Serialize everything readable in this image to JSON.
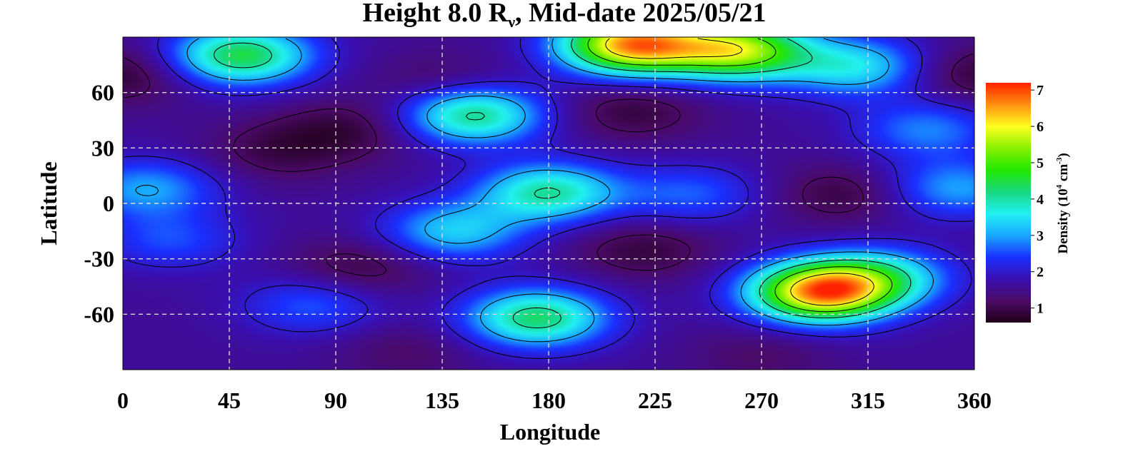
{
  "chart_data": {
    "type": "heatmap",
    "title": {
      "prefix": "Height 8.0 R",
      "subscript": "ν",
      "suffix": ", Mid-date 2025/05/21"
    },
    "xlabel": "Longitude",
    "ylabel": "Latitude",
    "xlim": [
      0,
      360
    ],
    "ylim": [
      -90,
      90
    ],
    "xticks": [
      0,
      45,
      90,
      135,
      180,
      225,
      270,
      315,
      360
    ],
    "yticks": [
      60,
      30,
      0,
      -30,
      -60
    ],
    "grid": true,
    "colorbar": {
      "label": {
        "prefix": "Density (10",
        "sup1": "4",
        "middle": " cm",
        "sup2": "-3",
        "suffix": ")"
      },
      "range": [
        0.6,
        7.2
      ],
      "ticks": [
        1,
        2,
        3,
        4,
        5,
        6,
        7
      ],
      "colors": [
        "#200018",
        "#4a0a66",
        "#3a0fb0",
        "#1a30ff",
        "#18a8ff",
        "#22f0f0",
        "#18d880",
        "#22e800",
        "#88f000",
        "#ffff20",
        "#ff9010",
        "#ff2200"
      ]
    },
    "features": [
      {
        "lon": 0,
        "lat": 70,
        "value": 0.8
      },
      {
        "lon": 360,
        "lat": 70,
        "value": 0.8
      },
      {
        "lon": 95,
        "lat": 40,
        "value": 0.9
      },
      {
        "lon": 65,
        "lat": 28,
        "value": 1.0
      },
      {
        "lon": 215,
        "lat": 50,
        "value": 0.9
      },
      {
        "lon": 135,
        "lat": 65,
        "value": 1.1
      },
      {
        "lon": 305,
        "lat": 5,
        "value": 0.9
      },
      {
        "lon": 100,
        "lat": -35,
        "value": 0.9
      },
      {
        "lon": 220,
        "lat": -25,
        "value": 0.9
      },
      {
        "lon": 120,
        "lat": -80,
        "value": 1.2
      },
      {
        "lon": 270,
        "lat": -82,
        "value": 1.2
      },
      {
        "lon": 215,
        "lat": 86,
        "value": 6.5
      },
      {
        "lon": 260,
        "lat": 83,
        "value": 5.5
      },
      {
        "lon": 50,
        "lat": 80,
        "value": 4.5
      },
      {
        "lon": 310,
        "lat": 74,
        "value": 3.5
      },
      {
        "lon": 148,
        "lat": 48,
        "value": 4.2
      },
      {
        "lon": 180,
        "lat": 6,
        "value": 4.0
      },
      {
        "lon": 140,
        "lat": -15,
        "value": 3.3
      },
      {
        "lon": 10,
        "lat": 8,
        "value": 3.0
      },
      {
        "lon": 352,
        "lat": 8,
        "value": 3.0
      },
      {
        "lon": 240,
        "lat": 5,
        "value": 2.6
      },
      {
        "lon": 295,
        "lat": -48,
        "value": 6.5
      },
      {
        "lon": 320,
        "lat": -40,
        "value": 3.5
      },
      {
        "lon": 175,
        "lat": -62,
        "value": 4.3
      },
      {
        "lon": 80,
        "lat": -55,
        "value": 2.6
      },
      {
        "lon": 20,
        "lat": -20,
        "value": 2.5
      },
      {
        "lon": 340,
        "lat": 40,
        "value": 2.8
      }
    ]
  }
}
